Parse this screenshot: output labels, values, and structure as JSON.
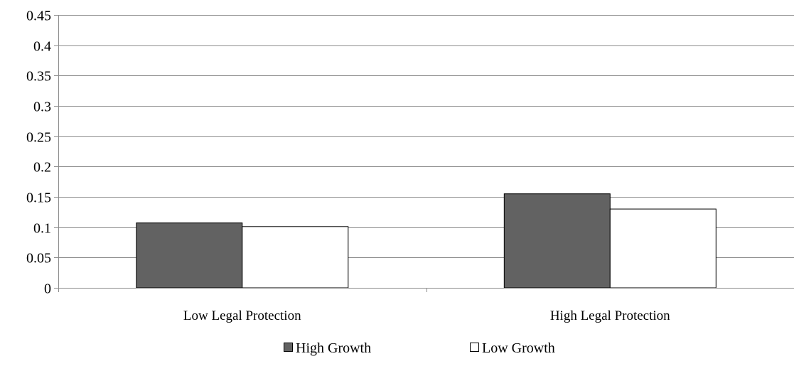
{
  "chart_data": {
    "type": "bar",
    "title": "",
    "xlabel": "",
    "ylabel": "",
    "categories": [
      "Low Legal Protection",
      "High Legal Protection"
    ],
    "series": [
      {
        "name": "High Growth",
        "values": [
          0.107,
          0.155
        ],
        "color": "#626262"
      },
      {
        "name": "Low Growth",
        "values": [
          0.101,
          0.13
        ],
        "color": "#ffffff"
      }
    ],
    "ylim": [
      0,
      0.45
    ],
    "yticks": [
      "0",
      "0.05",
      "0.1",
      "0.15",
      "0.2",
      "0.25",
      "0.3",
      "0.35",
      "0.4",
      "0.45"
    ],
    "grid": true,
    "legend_position": "bottom"
  },
  "colors": {
    "gridline": "#8c8c8c",
    "axis": "#8c8c8c",
    "bar_border": "#000000"
  }
}
